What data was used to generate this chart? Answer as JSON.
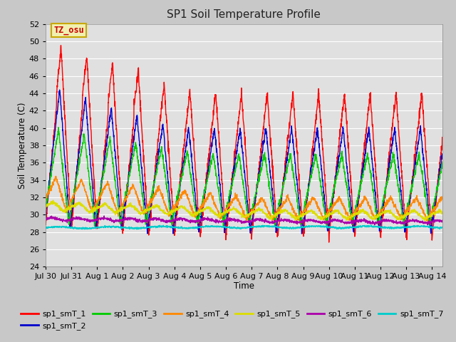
{
  "title": "SP1 Soil Temperature Profile",
  "xlabel": "Time",
  "ylabel": "Soil Temperature (C)",
  "ylim": [
    24,
    52
  ],
  "yticks": [
    24,
    26,
    28,
    30,
    32,
    34,
    36,
    38,
    40,
    42,
    44,
    46,
    48,
    50,
    52
  ],
  "fig_bg_color": "#c8c8c8",
  "plot_bg_color": "#e0e0e0",
  "grid_color": "#ffffff",
  "annotation_text": "TZ_osu",
  "annotation_color": "#cc0000",
  "annotation_bg": "#f0f0b0",
  "annotation_border": "#c8a800",
  "series_colors": {
    "sp1_smT_1": "#ff0000",
    "sp1_smT_2": "#0000cc",
    "sp1_smT_3": "#00cc00",
    "sp1_smT_4": "#ff8800",
    "sp1_smT_5": "#dddd00",
    "sp1_smT_6": "#aa00aa",
    "sp1_smT_7": "#00cccc"
  },
  "tick_labels": [
    "Jul 30",
    "Jul 31",
    "Aug 1",
    "Aug 2",
    "Aug 3",
    "Aug 4",
    "Aug 5",
    "Aug 6",
    "Aug 7",
    "Aug 8",
    "Aug 9",
    "Aug 10",
    "Aug 11",
    "Aug 12",
    "Aug 13",
    "Aug 14"
  ],
  "tick_positions": [
    0,
    1,
    2,
    3,
    4,
    5,
    6,
    7,
    8,
    9,
    10,
    11,
    12,
    13,
    14,
    15
  ]
}
